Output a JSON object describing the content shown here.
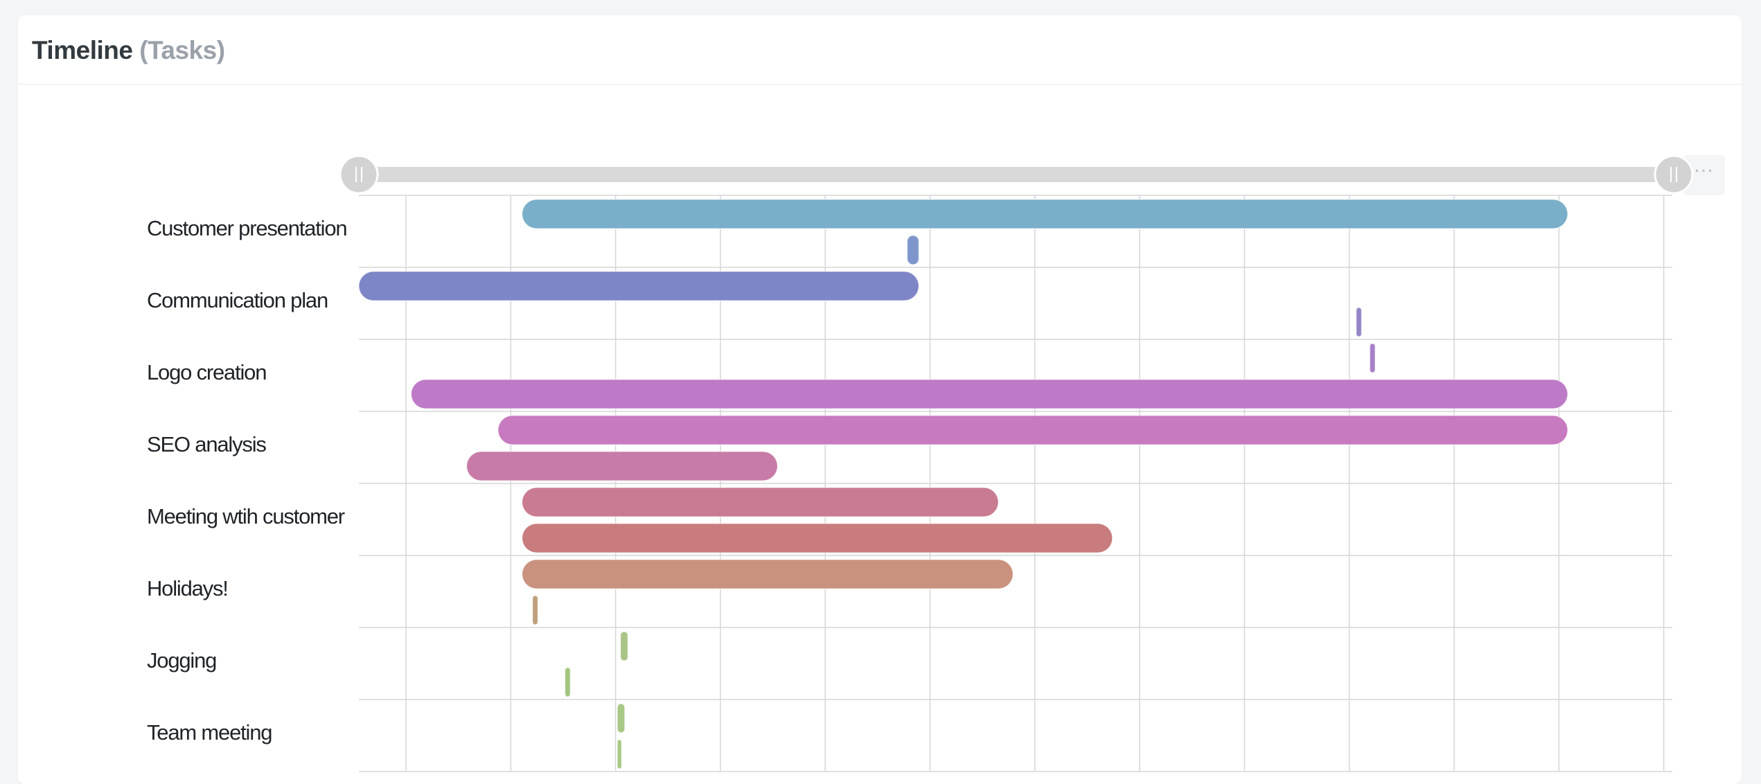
{
  "header": {
    "title": "Timeline",
    "subtitle": "(Tasks)"
  },
  "menu": {
    "icon": "ellipsis-icon",
    "glyph": "…"
  },
  "scrollbar": {
    "start_fraction": 0.0,
    "end_fraction": 1.0,
    "track_color": "#d9d9d9",
    "handle_color": "#d3d3d3"
  },
  "chart_data": {
    "type": "gantt",
    "categories": [
      "Customer presentation",
      "Communication plan",
      "Logo creation",
      "SEO analysis",
      "Meeting wtih customer",
      "Holidays!",
      "Jogging",
      "Team meeting"
    ],
    "x_range": [
      0,
      1255
    ],
    "grid_columns": 13,
    "grid": true,
    "tasks": [
      {
        "category": "Customer presentation",
        "slot": 0,
        "start": 156,
        "end": 1155,
        "color": "#7aafc9"
      },
      {
        "category": "Customer presentation",
        "slot": 1,
        "start": 524,
        "end": 535,
        "color": "#7e96cb"
      },
      {
        "category": "Communication plan",
        "slot": 0,
        "start": 0,
        "end": 535,
        "color": "#7e86c8"
      },
      {
        "category": "Communication plan",
        "slot": 1,
        "start": 953,
        "end": 958,
        "color": "#9485c7"
      },
      {
        "category": "Logo creation",
        "slot": 0,
        "start": 966,
        "end": 971,
        "color": "#a77fc9"
      },
      {
        "category": "Logo creation",
        "slot": 1,
        "start": 50,
        "end": 1155,
        "color": "#bd7ac6"
      },
      {
        "category": "SEO analysis",
        "slot": 0,
        "start": 133,
        "end": 1155,
        "color": "#c77ac0"
      },
      {
        "category": "SEO analysis",
        "slot": 1,
        "start": 103,
        "end": 400,
        "color": "#c97ba8"
      },
      {
        "category": "Meeting wtih customer",
        "slot": 0,
        "start": 156,
        "end": 611,
        "color": "#c97b91"
      },
      {
        "category": "Meeting wtih customer",
        "slot": 1,
        "start": 156,
        "end": 720,
        "color": "#c87c7d"
      },
      {
        "category": "Holidays!",
        "slot": 0,
        "start": 156,
        "end": 625,
        "color": "#c9927f"
      },
      {
        "category": "Holidays!",
        "slot": 1,
        "start": 166,
        "end": 171,
        "color": "#bfa07e"
      },
      {
        "category": "Jogging",
        "slot": 0,
        "start": 250,
        "end": 257,
        "color": "#a9c487"
      },
      {
        "category": "Jogging",
        "slot": 1,
        "start": 197,
        "end": 202,
        "color": "#a2c57f"
      },
      {
        "category": "Team meeting",
        "slot": 0,
        "start": 247,
        "end": 254,
        "color": "#a9c887"
      },
      {
        "category": "Team meeting",
        "slot": 1,
        "start": 247,
        "end": 251,
        "color": "#a8c985"
      }
    ]
  }
}
